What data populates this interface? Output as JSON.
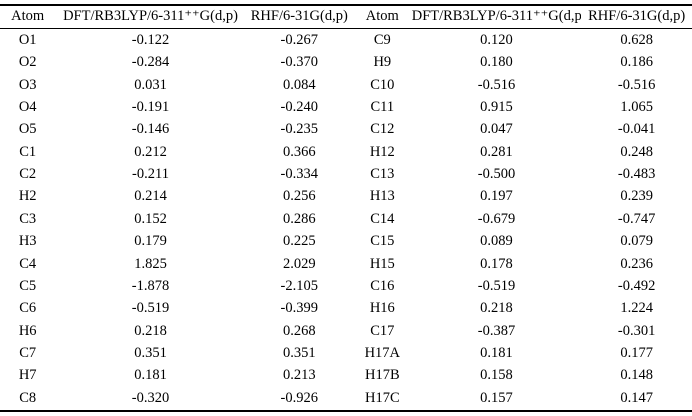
{
  "table": {
    "headers": [
      "Atom",
      "DFT/RB3LYP/6-311⁺⁺G(d,p)",
      "RHF/6-31G(d,p)",
      "Atom",
      "DFT/RB3LYP/6-311⁺⁺G(d,p)",
      "RHF/6-31G(d,p)"
    ],
    "rows": [
      [
        "O1",
        "-0.122",
        "-0.267",
        "C9",
        "0.120",
        "0.628"
      ],
      [
        "O2",
        "-0.284",
        "-0.370",
        "H9",
        "0.180",
        "0.186"
      ],
      [
        "O3",
        "0.031",
        "0.084",
        "C10",
        "-0.516",
        "-0.516"
      ],
      [
        "O4",
        "-0.191",
        "-0.240",
        "C11",
        "0.915",
        "1.065"
      ],
      [
        "O5",
        "-0.146",
        "-0.235",
        "C12",
        "0.047",
        "-0.041"
      ],
      [
        "C1",
        "0.212",
        "0.366",
        "H12",
        "0.281",
        "0.248"
      ],
      [
        "C2",
        "-0.211",
        "-0.334",
        "C13",
        "-0.500",
        "-0.483"
      ],
      [
        "H2",
        "0.214",
        "0.256",
        "H13",
        "0.197",
        "0.239"
      ],
      [
        "C3",
        "0.152",
        "0.286",
        "C14",
        "-0.679",
        "-0.747"
      ],
      [
        "H3",
        "0.179",
        "0.225",
        "C15",
        "0.089",
        "0.079"
      ],
      [
        "C4",
        "1.825",
        "2.029",
        "H15",
        "0.178",
        "0.236"
      ],
      [
        "C5",
        "-1.878",
        "-2.105",
        "C16",
        "-0.519",
        "-0.492"
      ],
      [
        "C6",
        "-0.519",
        "-0.399",
        "H16",
        "0.218",
        "1.224"
      ],
      [
        "H6",
        "0.218",
        "0.268",
        "C17",
        "-0.387",
        "-0.301"
      ],
      [
        "C7",
        "0.351",
        "0.351",
        "H17A",
        "0.181",
        "0.177"
      ],
      [
        "H7",
        "0.181",
        "0.213",
        "H17B",
        "0.158",
        "0.148"
      ],
      [
        "C8",
        "-0.320",
        "-0.926",
        "H17C",
        "0.157",
        "0.147"
      ]
    ]
  }
}
